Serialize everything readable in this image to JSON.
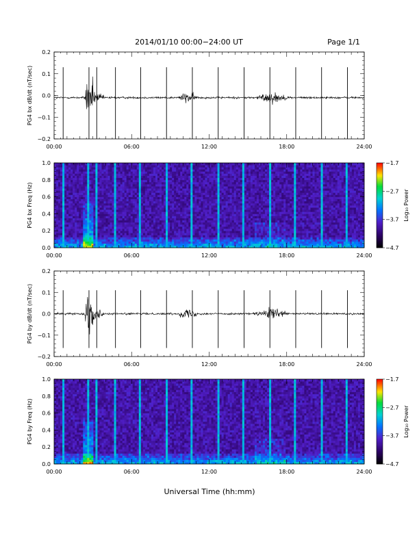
{
  "header": {
    "title": "2014/01/10  00:00−24:00 UT",
    "page": "Page 1/1"
  },
  "xaxis": {
    "label": "Universal Time (hh:mm)",
    "ticks": [
      "00:00",
      "06:00",
      "12:00",
      "18:00",
      "24:00"
    ]
  },
  "chart_data": [
    {
      "type": "line",
      "ylabel": "PG4 bx dB/dt (nT/sec)",
      "xlim": [
        "00:00",
        "24:00"
      ],
      "ylim": [
        -0.2,
        0.2
      ],
      "yticks": [
        "0.2",
        "0.1",
        "0.0",
        "−0.1",
        "−0.2"
      ],
      "baseline": -0.01,
      "spikes_hours": [
        0.7,
        2.7,
        3.3,
        4.75,
        6.7,
        8.7,
        10.7,
        12.7,
        14.7,
        16.7,
        18.7,
        20.7,
        22.7
      ],
      "spike_range": [
        -0.2,
        0.13
      ],
      "active_intervals_hours": [
        [
          2.3,
          4.0
        ],
        [
          9.5,
          11.2
        ],
        [
          15.5,
          18.2
        ]
      ]
    },
    {
      "type": "heatmap",
      "ylabel": "PG4 bx Freq (Hz)",
      "xlim": [
        "00:00",
        "24:00"
      ],
      "ylim": [
        0.0,
        1.0
      ],
      "yticks": [
        "1.0",
        "0.8",
        "0.6",
        "0.4",
        "0.2",
        "0.0"
      ],
      "colorbar": {
        "label": "Log₁₀ Power",
        "range": [
          -4.7,
          -1.7
        ],
        "ticks": [
          "−1.7",
          "−2.7",
          "−3.7",
          "−4.7"
        ]
      },
      "bright_columns_hours": [
        0.7,
        2.7,
        3.3,
        4.75,
        6.7,
        8.7,
        10.7,
        12.7,
        14.7,
        16.7,
        18.7,
        20.7,
        22.7
      ]
    },
    {
      "type": "line",
      "ylabel": "PG4 by dB/dt (nT/sec)",
      "xlim": [
        "00:00",
        "24:00"
      ],
      "ylim": [
        -0.2,
        0.2
      ],
      "yticks": [
        "0.2",
        "0.1",
        "0.0",
        "−0.1",
        "−0.2"
      ],
      "baseline": 0.0,
      "spikes_hours": [
        0.7,
        2.7,
        3.3,
        4.75,
        6.7,
        8.7,
        10.7,
        12.7,
        14.7,
        16.7,
        18.7,
        20.7,
        22.7
      ],
      "spike_range": [
        -0.16,
        0.11
      ],
      "active_intervals_hours": [
        [
          2.3,
          4.0
        ],
        [
          9.5,
          11.2
        ],
        [
          15.5,
          18.2
        ]
      ]
    },
    {
      "type": "heatmap",
      "ylabel": "PG4 by Freq (Hz)",
      "xlim": [
        "00:00",
        "24:00"
      ],
      "ylim": [
        0.0,
        1.0
      ],
      "yticks": [
        "1.0",
        "0.8",
        "0.6",
        "0.4",
        "0.2",
        "0.0"
      ],
      "colorbar": {
        "label": "Log₁₀ Power",
        "range": [
          -4.7,
          -1.7
        ],
        "ticks": [
          "−1.7",
          "−2.7",
          "−3.7",
          "−4.7"
        ]
      },
      "bright_columns_hours": [
        0.7,
        2.7,
        3.3,
        4.75,
        6.7,
        8.7,
        10.7,
        12.7,
        14.7,
        16.7,
        18.7,
        20.7,
        22.7
      ]
    }
  ]
}
